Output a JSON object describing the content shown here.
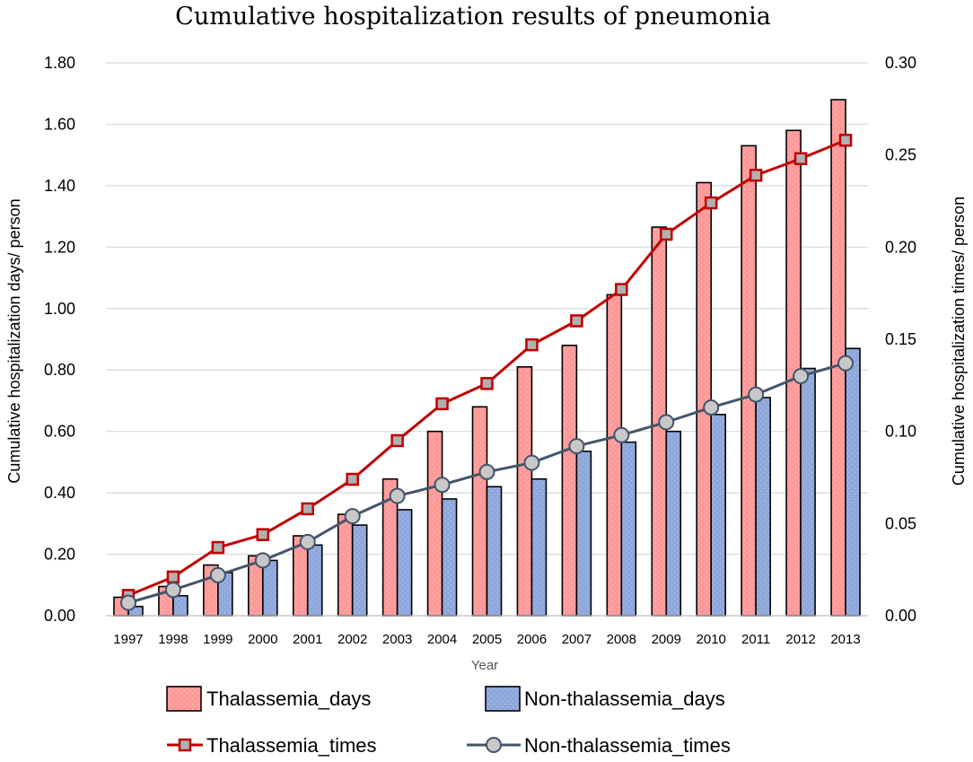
{
  "chart_data": {
    "type": "bar",
    "title": "Cumulative hospitalization results of pneumonia",
    "xlabel": "Year",
    "ylabel_left": "Cumulative hospitalization days/ person",
    "ylabel_right": "Cumulative hospitalization times/ person",
    "categories": [
      "1997",
      "1998",
      "1999",
      "2000",
      "2001",
      "2002",
      "2003",
      "2004",
      "2005",
      "2006",
      "2007",
      "2008",
      "2009",
      "2010",
      "2011",
      "2012",
      "2013"
    ],
    "ylim_left": [
      0,
      1.8
    ],
    "ylim_right": [
      0,
      0.3
    ],
    "yticks_left": [
      "0.00",
      "0.20",
      "0.40",
      "0.60",
      "0.80",
      "1.00",
      "1.20",
      "1.40",
      "1.60",
      "1.80"
    ],
    "yticks_right": [
      "0.00",
      "0.05",
      "0.10",
      "0.15",
      "0.20",
      "0.25",
      "0.30"
    ],
    "grid": true,
    "legend_position": "bottom",
    "bar_series": [
      {
        "name": "Thalassemia_days",
        "color": "#ff9a9a",
        "values": [
          0.06,
          0.095,
          0.165,
          0.195,
          0.26,
          0.33,
          0.445,
          0.6,
          0.68,
          0.81,
          0.88,
          1.045,
          1.265,
          1.41,
          1.53,
          1.58,
          1.68
        ]
      },
      {
        "name": "Non-thalassemia_days",
        "color": "#8fa8dc",
        "values": [
          0.03,
          0.065,
          0.14,
          0.18,
          0.23,
          0.295,
          0.345,
          0.38,
          0.42,
          0.445,
          0.535,
          0.565,
          0.6,
          0.655,
          0.71,
          0.805,
          0.87
        ]
      }
    ],
    "line_series": [
      {
        "name": "Thalassemia_times",
        "color": "#c00000",
        "axis": "right",
        "marker": "square",
        "values": [
          0.011,
          0.021,
          0.037,
          0.044,
          0.058,
          0.074,
          0.095,
          0.115,
          0.126,
          0.147,
          0.16,
          0.177,
          0.207,
          0.224,
          0.239,
          0.248,
          0.258
        ]
      },
      {
        "name": "Non-thalassemia_times",
        "color": "#44546a",
        "axis": "right",
        "marker": "circle",
        "values": [
          0.007,
          0.014,
          0.022,
          0.03,
          0.04,
          0.054,
          0.065,
          0.071,
          0.078,
          0.083,
          0.092,
          0.098,
          0.105,
          0.113,
          0.12,
          0.13,
          0.137
        ]
      }
    ]
  }
}
